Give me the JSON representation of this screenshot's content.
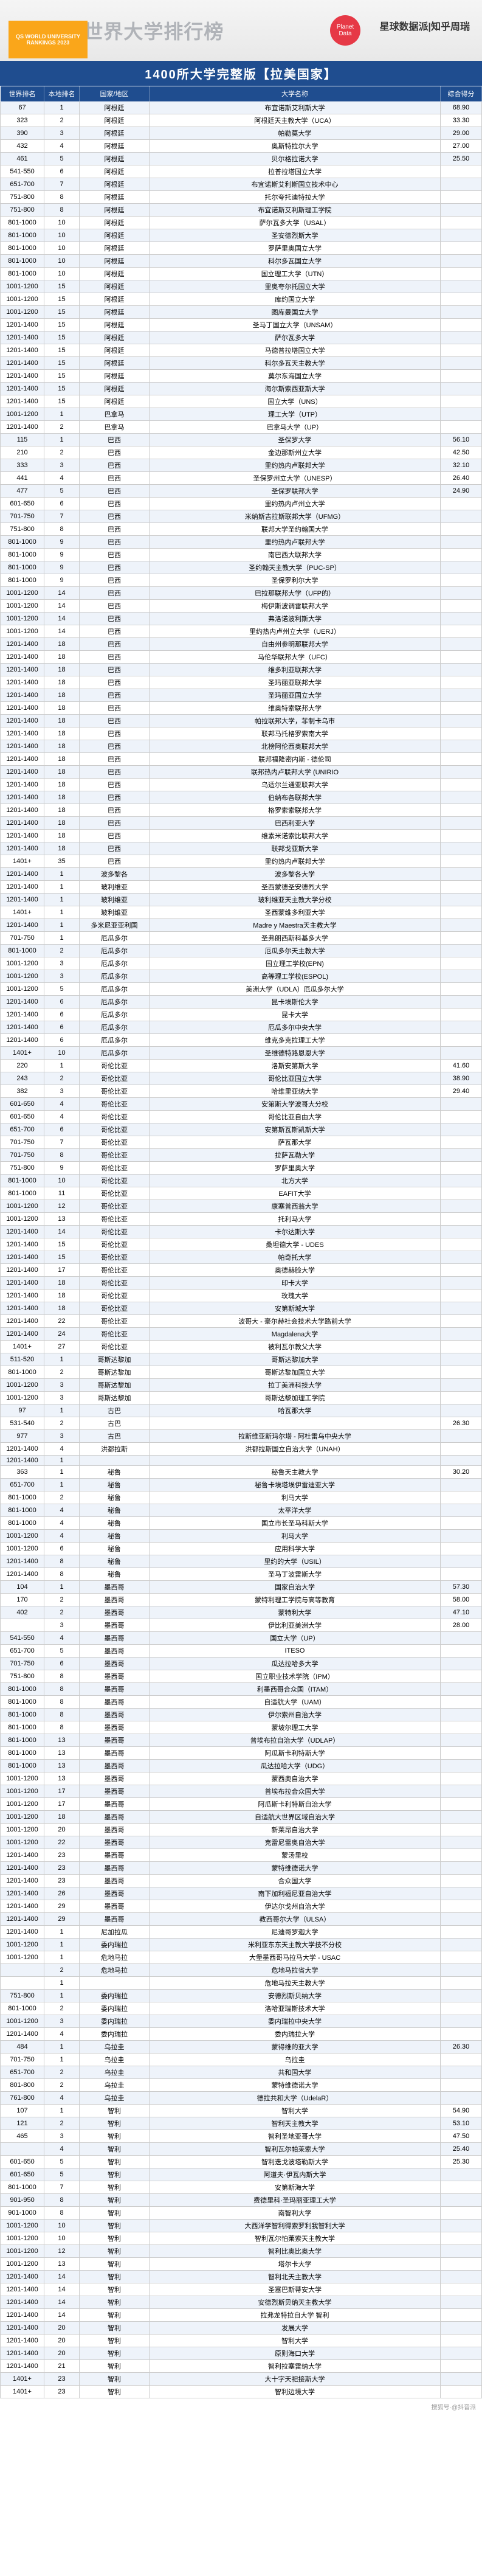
{
  "header": {
    "title": "2023QS世界大学排行榜",
    "qs_logo_text": "QS WORLD UNIVERSITY RANKINGS 2023",
    "planet_text": "Planet Data",
    "brand": "星球数据派|知乎周瑞"
  },
  "table_bar": "1400所大学完整版【拉美国家】",
  "columns": [
    "世界排名",
    "本地排名",
    "国家/地区",
    "大学名称",
    "综合得分"
  ],
  "rows": [
    [
      "67",
      "1",
      "阿根廷",
      "布宜诺斯艾利斯大学",
      "68.90"
    ],
    [
      "323",
      "2",
      "阿根廷",
      "阿根廷天主教大学（UCA）",
      "33.30"
    ],
    [
      "390",
      "3",
      "阿根廷",
      "帕勒莫大学",
      "29.00"
    ],
    [
      "432",
      "4",
      "阿根廷",
      "奥斯特拉尔大学",
      "27.00"
    ],
    [
      "461",
      "5",
      "阿根廷",
      "贝尔格拉诺大学",
      "25.50"
    ],
    [
      "541-550",
      "6",
      "阿根廷",
      "拉普拉塔国立大学",
      ""
    ],
    [
      "651-700",
      "7",
      "阿根廷",
      "布宜诺斯艾利斯国立技术中心",
      ""
    ],
    [
      "751-800",
      "8",
      "阿根廷",
      "托尔夸托迪特拉大学",
      ""
    ],
    [
      "751-800",
      "8",
      "阿根廷",
      "布宜诺斯艾利斯理工学院",
      ""
    ],
    [
      "801-1000",
      "10",
      "阿根廷",
      "萨尔瓦多大学（USAL）",
      ""
    ],
    [
      "801-1000",
      "10",
      "阿根廷",
      "圣安德烈斯大学",
      ""
    ],
    [
      "801-1000",
      "10",
      "阿根廷",
      "罗萨里奥国立大学",
      ""
    ],
    [
      "801-1000",
      "10",
      "阿根廷",
      "科尔多瓦国立大学",
      ""
    ],
    [
      "801-1000",
      "10",
      "阿根廷",
      "国立理工大学（UTN）",
      ""
    ],
    [
      "1001-1200",
      "15",
      "阿根廷",
      "里奥夸尔托国立大学",
      ""
    ],
    [
      "1001-1200",
      "15",
      "阿根廷",
      "库约国立大学",
      ""
    ],
    [
      "1001-1200",
      "15",
      "阿根廷",
      "图库曼国立大学",
      ""
    ],
    [
      "1201-1400",
      "15",
      "阿根廷",
      "圣马丁国立大学（UNSAM）",
      ""
    ],
    [
      "1201-1400",
      "15",
      "阿根廷",
      "萨尔瓦多大学",
      ""
    ],
    [
      "1201-1400",
      "15",
      "阿根廷",
      "马德普拉塔国立大学",
      ""
    ],
    [
      "1201-1400",
      "15",
      "阿根廷",
      "科尔多瓦天主教大学",
      ""
    ],
    [
      "1201-1400",
      "15",
      "阿根廷",
      "莫尔东海国立大学",
      ""
    ],
    [
      "1201-1400",
      "15",
      "阿根廷",
      "海尔斯索西亚斯大学",
      ""
    ],
    [
      "1201-1400",
      "15",
      "阿根廷",
      "国立大学（UNS）",
      ""
    ],
    [
      "1001-1200",
      "1",
      "巴拿马",
      "理工大学（UTP）",
      ""
    ],
    [
      "1201-1400",
      "2",
      "巴拿马",
      "巴拿马大学（UP）",
      ""
    ],
    [
      "115",
      "1",
      "巴西",
      "圣保罗大学",
      "56.10"
    ],
    [
      "210",
      "2",
      "巴西",
      "金边那斯州立大学",
      "42.50"
    ],
    [
      "333",
      "3",
      "巴西",
      "里约热内卢联邦大学",
      "32.10"
    ],
    [
      "441",
      "4",
      "巴西",
      "圣保罗州立大学（UNESP）",
      "26.40"
    ],
    [
      "477",
      "5",
      "巴西",
      "圣保罗联邦大学",
      "24.90"
    ],
    [
      "601-650",
      "6",
      "巴西",
      "里约热内卢州立大学",
      ""
    ],
    [
      "701-750",
      "7",
      "巴西",
      "米纳斯吉拉斯联邦大学（UFMG）",
      ""
    ],
    [
      "751-800",
      "8",
      "巴西",
      "联邦大学圣约翰国大学",
      ""
    ],
    [
      "801-1000",
      "9",
      "巴西",
      "里约热内卢联邦大学",
      ""
    ],
    [
      "801-1000",
      "9",
      "巴西",
      "南巴西大联邦大学",
      ""
    ],
    [
      "801-1000",
      "9",
      "巴西",
      "圣约翰天主教大学（PUC-SP）",
      ""
    ],
    [
      "801-1000",
      "9",
      "巴西",
      "圣保罗利尔大学",
      ""
    ],
    [
      "1001-1200",
      "14",
      "巴西",
      "巴拉那联邦大学（UFP的）",
      ""
    ],
    [
      "1001-1200",
      "14",
      "巴西",
      "梅伊斯波调雷联邦大学",
      ""
    ],
    [
      "1001-1200",
      "14",
      "巴西",
      "弗洛诺波利斯大学",
      ""
    ],
    [
      "1001-1200",
      "14",
      "巴西",
      "里约热内卢州立大学（UERJ）",
      ""
    ],
    [
      "1201-1400",
      "18",
      "巴西",
      "自由州参明那联邦大学",
      ""
    ],
    [
      "1201-1400",
      "18",
      "巴西",
      "马伦华联邦大学（UFC）",
      ""
    ],
    [
      "1201-1400",
      "18",
      "巴西",
      "维多利亚联邦大学",
      ""
    ],
    [
      "1201-1400",
      "18",
      "巴西",
      "圣玛丽亚联邦大学",
      ""
    ],
    [
      "1201-1400",
      "18",
      "巴西",
      "圣玛丽亚国立大学",
      ""
    ],
    [
      "1201-1400",
      "18",
      "巴西",
      "维奥特索联邦大学",
      ""
    ],
    [
      "1201-1400",
      "18",
      "巴西",
      "帕拉联邦大学，菲制卡乌市",
      ""
    ],
    [
      "1201-1400",
      "18",
      "巴西",
      "联邦马托格罗索南大学",
      ""
    ],
    [
      "1201-1400",
      "18",
      "巴西",
      "北榜阿伦西奥联邦大学",
      ""
    ],
    [
      "1201-1400",
      "18",
      "巴西",
      "联邦福隆密内斯 - 德伦司",
      ""
    ],
    [
      "1201-1400",
      "18",
      "巴西",
      "联邦热内卢联邦大学 (UNIRIO",
      ""
    ],
    [
      "1201-1400",
      "18",
      "巴西",
      "乌适尔兰通亚联邦大学",
      ""
    ],
    [
      "1201-1400",
      "18",
      "巴西",
      "伯纳布各联邦大学",
      ""
    ],
    [
      "1201-1400",
      "18",
      "巴西",
      "格罗索索联邦大学",
      ""
    ],
    [
      "1201-1400",
      "18",
      "巴西",
      "巴西利亚大学",
      ""
    ],
    [
      "1201-1400",
      "18",
      "巴西",
      "维素米诺索比联邦大学",
      ""
    ],
    [
      "1201-1400",
      "18",
      "巴西",
      "联邦戈亚斯大学",
      ""
    ],
    [
      "1401+",
      "35",
      "巴西",
      "里约热内卢联邦大学",
      ""
    ],
    [
      "1201-1400",
      "1",
      "波多黎各",
      "波多黎各大学",
      ""
    ],
    [
      "1201-1400",
      "1",
      "玻利维亚",
      "圣西蒙德圣安德烈大学",
      ""
    ],
    [
      "1201-1400",
      "1",
      "玻利维亚",
      "玻利维亚天主教大学分校",
      ""
    ],
    [
      "1401+",
      "1",
      "玻利维亚",
      "圣西蒙维多利亚大学",
      ""
    ],
    [
      "1201-1400",
      "1",
      "多米尼亚亚利国",
      "Madre y Maestra天主教大学",
      ""
    ],
    [
      "701-750",
      "1",
      "厄瓜多尔",
      "圣弗朗西斯科基多大学",
      ""
    ],
    [
      "801-1000",
      "2",
      "厄瓜多尔",
      "厄瓜多尔天主教大学",
      ""
    ],
    [
      "1001-1200",
      "3",
      "厄瓜多尔",
      "国立理工学校(EPN)",
      ""
    ],
    [
      "1001-1200",
      "3",
      "厄瓜多尔",
      "高等理工学校(ESPOL)",
      ""
    ],
    [
      "1001-1200",
      "5",
      "厄瓜多尔",
      "美洲大学（UDLA）厄瓜多尔大学",
      ""
    ],
    [
      "1201-1400",
      "6",
      "厄瓜多尔",
      "昆卡埃斯伦大学",
      ""
    ],
    [
      "1201-1400",
      "6",
      "厄瓜多尔",
      "昆卡大学",
      ""
    ],
    [
      "1201-1400",
      "6",
      "厄瓜多尔",
      "厄瓜多尔中央大学",
      ""
    ],
    [
      "1201-1400",
      "6",
      "厄瓜多尔",
      "维克多克拉理工大学",
      ""
    ],
    [
      "1401+",
      "10",
      "厄瓜多尔",
      "圣维德特路恩恩大学",
      ""
    ],
    [
      "220",
      "1",
      "哥伦比亚",
      "洛斯安第斯大学",
      "41.60"
    ],
    [
      "243",
      "2",
      "哥伦比亚",
      "哥伦比亚国立大学",
      "38.90"
    ],
    [
      "382",
      "3",
      "哥伦比亚",
      "哈维里亚纳大学",
      "29.40"
    ],
    [
      "601-650",
      "4",
      "哥伦比亚",
      "安第斯大学波哥大分校",
      ""
    ],
    [
      "601-650",
      "4",
      "哥伦比亚",
      "哥伦比亚自由大学",
      ""
    ],
    [
      "651-700",
      "6",
      "哥伦比亚",
      "安第斯瓦斯凯斯大学",
      ""
    ],
    [
      "701-750",
      "7",
      "哥伦比亚",
      "萨瓦那大学",
      ""
    ],
    [
      "701-750",
      "8",
      "哥伦比亚",
      "拉萨瓦勒大学",
      ""
    ],
    [
      "751-800",
      "9",
      "哥伦比亚",
      "罗萨里奥大学",
      ""
    ],
    [
      "801-1000",
      "10",
      "哥伦比亚",
      "北方大学",
      ""
    ],
    [
      "801-1000",
      "11",
      "哥伦比亚",
      "EAFIT大学",
      ""
    ],
    [
      "1001-1200",
      "12",
      "哥伦比亚",
      "康塞普西翁大学",
      ""
    ],
    [
      "1001-1200",
      "13",
      "哥伦比亚",
      "托利马大学",
      ""
    ],
    [
      "1201-1400",
      "14",
      "哥伦比亚",
      "卡尔达斯大学",
      ""
    ],
    [
      "1201-1400",
      "15",
      "哥伦比亚",
      "桑坦德大学 - UDES",
      ""
    ],
    [
      "1201-1400",
      "15",
      "哥伦比亚",
      "帕奇托大学",
      ""
    ],
    [
      "1201-1400",
      "17",
      "哥伦比亚",
      "奥德赫脸大学",
      ""
    ],
    [
      "1201-1400",
      "18",
      "哥伦比亚",
      "印卡大学",
      ""
    ],
    [
      "1201-1400",
      "18",
      "哥伦比亚",
      "玫瑰大学",
      ""
    ],
    [
      "1201-1400",
      "18",
      "哥伦比亚",
      "安第斯城大学",
      ""
    ],
    [
      "1201-1400",
      "22",
      "哥伦比亚",
      "波哥大 - 豪尔赫社会技术大学路前大学",
      ""
    ],
    [
      "1201-1400",
      "24",
      "哥伦比亚",
      "Magdalena大学",
      ""
    ],
    [
      "1401+",
      "27",
      "哥伦比亚",
      "被利瓦尔教父大学",
      ""
    ],
    [
      "511-520",
      "1",
      "哥斯达黎加",
      "哥斯达黎加大学",
      ""
    ],
    [
      "801-1000",
      "2",
      "哥斯达黎加",
      "哥斯达黎加国立大学",
      ""
    ],
    [
      "1001-1200",
      "3",
      "哥斯达黎加",
      "拉丁美洲科技大学",
      ""
    ],
    [
      "1001-1200",
      "3",
      "哥斯达黎加",
      "哥斯达黎加理工学院",
      ""
    ],
    [
      "97",
      "1",
      "古巴",
      "哈瓦那大学",
      ""
    ],
    [
      "531-540",
      "2",
      "古巴",
      "",
      "26.30"
    ],
    [
      "977",
      "3",
      "古巴",
      "拉斯维亚斯玛尔塔 - 阿杜雷乌中央大学",
      ""
    ],
    [
      "1201-1400",
      "4",
      "洪都拉斯",
      "洪都拉斯国立自治大学（UNAH）",
      ""
    ],
    [
      "1201-1400",
      "1",
      "",
      "",
      ""
    ],
    [
      "363",
      "1",
      "秘鲁",
      "秘鲁天主教大学",
      "30.20"
    ],
    [
      "651-700",
      "1",
      "秘鲁",
      "秘鲁卡埃塔埃伊雷迪亚大学",
      ""
    ],
    [
      "801-1000",
      "2",
      "秘鲁",
      "利马大学",
      ""
    ],
    [
      "801-1000",
      "4",
      "秘鲁",
      "太平洋大学",
      ""
    ],
    [
      "801-1000",
      "4",
      "秘鲁",
      "国立市长圣马科斯大学",
      ""
    ],
    [
      "1001-1200",
      "4",
      "秘鲁",
      "利马大学",
      ""
    ],
    [
      "1001-1200",
      "6",
      "秘鲁",
      "应用科学大学",
      ""
    ],
    [
      "1201-1400",
      "8",
      "秘鲁",
      "里约的大学（USIL）",
      ""
    ],
    [
      "1201-1400",
      "8",
      "秘鲁",
      "圣马丁波雷斯大学",
      ""
    ],
    [
      "104",
      "1",
      "墨西哥",
      "国家自治大学",
      "57.30"
    ],
    [
      "170",
      "2",
      "墨西哥",
      "蒙特利理工学院与高等教育",
      "58.00"
    ],
    [
      "402",
      "2",
      "墨西哥",
      "蒙特利大学",
      "47.10"
    ],
    [
      "",
      "3",
      "墨西哥",
      "伊比利亚美洲大学",
      "28.00"
    ],
    [
      "541-550",
      "4",
      "墨西哥",
      "国立大学（UP）",
      ""
    ],
    [
      "651-700",
      "5",
      "墨西哥",
      "ITESO",
      ""
    ],
    [
      "701-750",
      "6",
      "墨西哥",
      "瓜达拉哈多大学",
      ""
    ],
    [
      "751-800",
      "8",
      "墨西哥",
      "国立职业技术学院（IPM）",
      ""
    ],
    [
      "801-1000",
      "8",
      "墨西哥",
      "利墨西哥合众国（ITAM）",
      ""
    ],
    [
      "801-1000",
      "8",
      "墨西哥",
      "自适航大学（UAM）",
      ""
    ],
    [
      "801-1000",
      "8",
      "墨西哥",
      "伊尔索州自治大学",
      ""
    ],
    [
      "801-1000",
      "8",
      "墨西哥",
      "蒙坡尔理工大学",
      ""
    ],
    [
      "801-1000",
      "13",
      "墨西哥",
      "普埃布拉自治大学（UDLAP）",
      ""
    ],
    [
      "801-1000",
      "13",
      "墨西哥",
      "阿瓜斯卡利特斯大学",
      ""
    ],
    [
      "801-1000",
      "13",
      "墨西哥",
      "瓜达拉哈大学（UDG）",
      ""
    ],
    [
      "1001-1200",
      "13",
      "墨西哥",
      "蒙西奥自治大学",
      ""
    ],
    [
      "1001-1200",
      "17",
      "墨西哥",
      "普埃布拉合众国大学",
      ""
    ],
    [
      "1001-1200",
      "17",
      "墨西哥",
      "阿瓜斯卡利特斯自治大学",
      ""
    ],
    [
      "1001-1200",
      "18",
      "墨西哥",
      "自适航大世界区域自治大学",
      ""
    ],
    [
      "1001-1200",
      "20",
      "墨西哥",
      "新莱昂自治大学",
      ""
    ],
    [
      "1001-1200",
      "22",
      "墨西哥",
      "克雷尼雷奥自治大学",
      ""
    ],
    [
      "1201-1400",
      "23",
      "墨西哥",
      "蒙汤里校",
      ""
    ],
    [
      "1201-1400",
      "23",
      "墨西哥",
      "蒙特维德诺大学",
      ""
    ],
    [
      "1201-1400",
      "23",
      "墨西哥",
      "合众国大学",
      ""
    ],
    [
      "1201-1400",
      "26",
      "墨西哥",
      "南下加利福尼亚自治大学",
      ""
    ],
    [
      "1201-1400",
      "29",
      "墨西哥",
      "伊达尔戈州自治大学",
      ""
    ],
    [
      "1201-1400",
      "29",
      "墨西哥",
      "教西哥尔大学（ULSA）",
      ""
    ],
    [
      "1201-1400",
      "1",
      "尼加拉瓜",
      "尼迪哥罗迦大学",
      ""
    ],
    [
      "1001-1200",
      "1",
      "委内瑞拉",
      "米利亚东东天主教大学技不分校",
      ""
    ],
    [
      "1001-1200",
      "1",
      "危地马拉",
      "大堡墨西哥马拉马大学 - USAC",
      ""
    ],
    [
      "",
      "2",
      "危地马拉",
      "危地马拉省大学",
      ""
    ],
    [
      "",
      "1",
      "",
      "危地马拉天主教大学",
      ""
    ],
    [
      "751-800",
      "1",
      "委内瑞拉",
      "安德烈斯贝纳大学",
      ""
    ],
    [
      "801-1000",
      "2",
      "委内瑞拉",
      "洛哈亚瑞斯技术大学",
      ""
    ],
    [
      "1001-1200",
      "3",
      "委内瑞拉",
      "委内瑞拉中央大学",
      ""
    ],
    [
      "1201-1400",
      "4",
      "委内瑞拉",
      "委内瑞拉大学",
      ""
    ],
    [
      "484",
      "1",
      "乌拉圭",
      "蒙得维的亚大学",
      "26.30"
    ],
    [
      "701-750",
      "1",
      "乌拉圭",
      "乌拉圭",
      ""
    ],
    [
      "651-700",
      "2",
      "乌拉圭",
      "共和国大学",
      ""
    ],
    [
      "801-800",
      "2",
      "乌拉圭",
      "蒙特维德诺大学",
      ""
    ],
    [
      "761-800",
      "4",
      "乌拉圭",
      "德拉共和大学（UdelaR）",
      ""
    ],
    [
      "107",
      "1",
      "智利",
      "智利大学",
      "54.90"
    ],
    [
      "121",
      "2",
      "智利",
      "智利天主教大学",
      "53.10"
    ],
    [
      "465",
      "3",
      "智利",
      "智利圣地亚哥大学",
      "47.50"
    ],
    [
      "",
      "4",
      "智利",
      "智利瓦尔帕莱索大学",
      "25.40"
    ],
    [
      "601-650",
      "5",
      "智利",
      "智利迭戈波塔勒斯大学",
      "25.30"
    ],
    [
      "601-650",
      "5",
      "智利",
      "阿道夫·伊瓦内斯大学",
      ""
    ],
    [
      "801-1000",
      "7",
      "智利",
      "安第斯海大学",
      ""
    ],
    [
      "901-950",
      "8",
      "智利",
      "费德里科·圣玛丽亚理工大学",
      ""
    ],
    [
      "901-1000",
      "8",
      "智利",
      "南智利大学",
      ""
    ],
    [
      "1001-1200",
      "10",
      "智利",
      "大西洋学智利得索罗利我智利大学",
      ""
    ],
    [
      "1001-1200",
      "10",
      "智利",
      "智利瓦尔怕莱索天主教大学",
      ""
    ],
    [
      "1001-1200",
      "12",
      "智利",
      "智利比奥比奥大学",
      ""
    ],
    [
      "1001-1200",
      "13",
      "智利",
      "塔尔卡大学",
      ""
    ],
    [
      "1201-1400",
      "14",
      "智利",
      "智利北天主教大学",
      ""
    ],
    [
      "1201-1400",
      "14",
      "智利",
      "圣塞巴斯蒂安大学",
      ""
    ],
    [
      "1201-1400",
      "14",
      "智利",
      "安德烈斯贝纳天主教大学",
      ""
    ],
    [
      "1201-1400",
      "14",
      "智利",
      "拉弗龙特拉自大学 智利",
      ""
    ],
    [
      "1201-1400",
      "20",
      "智利",
      "发展大学",
      ""
    ],
    [
      "1201-1400",
      "20",
      "智利",
      "智利大学",
      ""
    ],
    [
      "1201-1400",
      "20",
      "智利",
      "原则海口大学",
      ""
    ],
    [
      "1201-1400",
      "21",
      "智利",
      "智利拉塞雷纳大学",
      ""
    ],
    [
      "1401+",
      "23",
      "智利",
      "大十字天祀接斯大学",
      ""
    ],
    [
      "1401+",
      "23",
      "智利",
      "智利边境大学",
      ""
    ]
  ],
  "footer": "搜狐号·@抖音派"
}
